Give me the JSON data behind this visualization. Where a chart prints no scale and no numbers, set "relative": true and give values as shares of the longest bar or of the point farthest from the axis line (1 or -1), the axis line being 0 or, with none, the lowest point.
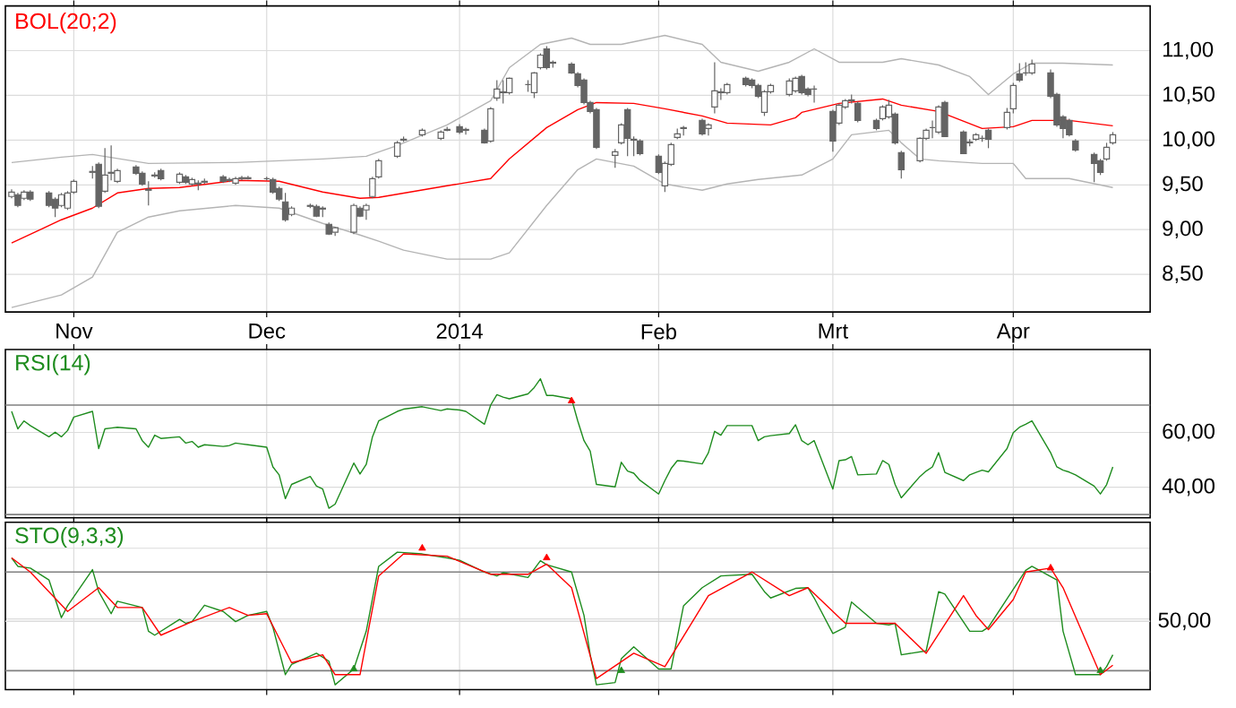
{
  "chart_data": [
    {
      "type": "candlestick",
      "color": "#646464",
      "x": [
        "2013-10-22",
        "2013-10-23",
        "2013-10-24",
        "2013-10-25",
        "2013-10-28",
        "2013-10-29",
        "2013-10-30",
        "2013-10-31",
        "2013-11-01",
        "2013-11-04",
        "2013-11-05",
        "2013-11-06",
        "2013-11-07",
        "2013-11-08",
        "2013-11-11",
        "2013-11-12",
        "2013-11-13",
        "2013-11-14",
        "2013-11-15",
        "2013-11-18",
        "2013-11-19",
        "2013-11-20",
        "2013-11-21",
        "2013-11-22",
        "2013-11-25",
        "2013-11-26",
        "2013-11-27",
        "2013-11-28",
        "2013-11-29",
        "2013-12-02",
        "2013-12-03",
        "2013-12-04",
        "2013-12-05",
        "2013-12-06",
        "2013-12-09",
        "2013-12-10",
        "2013-12-11",
        "2013-12-12",
        "2013-12-13",
        "2013-12-16",
        "2013-12-17",
        "2013-12-18",
        "2013-12-19",
        "2013-12-20",
        "2013-12-23",
        "2013-12-24",
        "2013-12-27",
        "2013-12-30",
        "2013-12-31",
        "2014-01-02",
        "2014-01-03",
        "2014-01-06",
        "2014-01-07",
        "2014-01-08",
        "2014-01-09",
        "2014-01-10",
        "2014-01-13",
        "2014-01-14",
        "2014-01-15",
        "2014-01-16",
        "2014-01-17",
        "2014-01-20",
        "2014-01-21",
        "2014-01-22",
        "2014-01-23",
        "2014-01-24",
        "2014-01-27",
        "2014-01-28",
        "2014-01-29",
        "2014-01-30",
        "2014-01-31",
        "2014-02-03",
        "2014-02-04",
        "2014-02-05",
        "2014-02-06",
        "2014-02-07",
        "2014-02-10",
        "2014-02-11",
        "2014-02-12",
        "2014-02-13",
        "2014-02-14",
        "2014-02-17",
        "2014-02-18",
        "2014-02-19",
        "2014-02-20",
        "2014-02-21",
        "2014-02-24",
        "2014-02-25",
        "2014-02-26",
        "2014-02-27",
        "2014-02-28",
        "2014-03-03",
        "2014-03-04",
        "2014-03-05",
        "2014-03-06",
        "2014-03-07",
        "2014-03-10",
        "2014-03-11",
        "2014-03-12",
        "2014-03-13",
        "2014-03-14",
        "2014-03-17",
        "2014-03-18",
        "2014-03-19",
        "2014-03-20",
        "2014-03-21",
        "2014-03-24",
        "2014-03-25",
        "2014-03-26",
        "2014-03-27",
        "2014-03-28",
        "2014-03-31",
        "2014-04-01",
        "2014-04-02",
        "2014-04-03",
        "2014-04-04",
        "2014-04-07",
        "2014-04-08",
        "2014-04-09",
        "2014-04-10",
        "2014-04-11",
        "2014-04-14",
        "2014-04-15",
        "2014-04-16",
        "2014-04-17"
      ],
      "ohlc": [
        [
          9.37,
          9.45,
          9.35,
          9.42
        ],
        [
          9.39,
          9.41,
          9.25,
          9.27
        ],
        [
          9.35,
          9.44,
          9.33,
          9.42
        ],
        [
          9.42,
          9.44,
          9.32,
          9.34
        ],
        [
          9.41,
          9.43,
          9.25,
          9.27
        ],
        [
          9.34,
          9.36,
          9.14,
          9.24
        ],
        [
          9.27,
          9.41,
          9.25,
          9.39
        ],
        [
          9.24,
          9.43,
          9.22,
          9.41
        ],
        [
          9.42,
          9.56,
          9.4,
          9.54
        ],
        [
          9.64,
          9.71,
          9.57,
          9.65
        ],
        [
          9.73,
          9.75,
          9.24,
          9.26
        ],
        [
          9.43,
          9.91,
          9.41,
          9.61
        ],
        [
          9.63,
          9.94,
          9.55,
          9.64
        ],
        [
          9.54,
          9.68,
          9.52,
          9.66
        ],
        [
          9.7,
          9.72,
          9.61,
          9.63
        ],
        [
          9.63,
          9.65,
          9.49,
          9.51
        ],
        [
          9.45,
          9.54,
          9.27,
          9.44
        ],
        [
          9.6,
          9.64,
          9.58,
          9.61
        ],
        [
          9.66,
          9.68,
          9.55,
          9.57
        ],
        [
          9.53,
          9.64,
          9.51,
          9.62
        ],
        [
          9.59,
          9.61,
          9.51,
          9.53
        ],
        [
          9.51,
          9.58,
          9.49,
          9.56
        ],
        [
          9.52,
          9.55,
          9.44,
          9.51
        ],
        [
          9.53,
          9.57,
          9.51,
          9.54
        ],
        [
          9.59,
          9.61,
          9.52,
          9.54
        ],
        [
          9.55,
          9.58,
          9.53,
          9.56
        ],
        [
          9.52,
          9.59,
          9.5,
          9.57
        ],
        [
          9.57,
          9.6,
          9.55,
          9.58
        ],
        [
          9.58,
          9.6,
          9.56,
          9.57
        ],
        [
          9.57,
          9.59,
          9.55,
          9.57
        ],
        [
          9.56,
          9.58,
          9.4,
          9.42
        ],
        [
          9.46,
          9.48,
          9.32,
          9.34
        ],
        [
          9.31,
          9.41,
          9.09,
          9.11
        ],
        [
          9.17,
          9.26,
          9.15,
          9.24
        ],
        [
          9.26,
          9.29,
          9.24,
          9.27
        ],
        [
          9.26,
          9.28,
          9.14,
          9.15
        ],
        [
          9.24,
          9.26,
          9.14,
          9.23
        ],
        [
          9.06,
          9.08,
          8.94,
          8.95
        ],
        [
          8.97,
          9.03,
          8.93,
          9.02
        ],
        [
          8.97,
          9.29,
          8.95,
          9.27
        ],
        [
          9.24,
          9.26,
          9.14,
          9.15
        ],
        [
          9.22,
          9.29,
          9.11,
          9.27
        ],
        [
          9.37,
          9.59,
          9.35,
          9.57
        ],
        [
          9.59,
          9.79,
          9.57,
          9.77
        ],
        [
          9.82,
          9.99,
          9.8,
          9.97
        ],
        [
          10.0,
          10.04,
          9.98,
          10.01
        ],
        [
          10.06,
          10.13,
          10.04,
          10.11
        ],
        [
          10.02,
          10.11,
          10.0,
          10.09
        ],
        [
          10.11,
          10.15,
          10.1,
          10.12
        ],
        [
          10.15,
          10.18,
          10.07,
          10.09
        ],
        [
          10.12,
          10.14,
          10.06,
          10.11
        ],
        [
          10.11,
          10.13,
          9.96,
          9.97
        ],
        [
          9.99,
          10.37,
          9.97,
          10.35
        ],
        [
          10.47,
          10.67,
          10.44,
          10.57
        ],
        [
          10.53,
          10.67,
          10.41,
          10.54
        ],
        [
          10.53,
          10.7,
          10.51,
          10.69
        ],
        [
          10.62,
          10.67,
          10.54,
          10.62
        ],
        [
          10.53,
          10.76,
          10.47,
          10.75
        ],
        [
          10.81,
          10.97,
          10.79,
          10.95
        ],
        [
          11.02,
          11.05,
          10.79,
          10.81
        ],
        [
          10.87,
          10.89,
          10.81,
          10.86
        ],
        [
          10.85,
          10.87,
          10.74,
          10.75
        ],
        [
          10.74,
          10.76,
          10.59,
          10.61
        ],
        [
          10.67,
          10.69,
          10.4,
          10.42
        ],
        [
          10.42,
          10.44,
          10.3,
          10.32
        ],
        [
          10.34,
          10.36,
          9.9,
          9.92
        ],
        [
          9.83,
          9.9,
          9.69,
          9.87
        ],
        [
          9.97,
          10.19,
          9.95,
          10.17
        ],
        [
          10.34,
          10.36,
          9.82,
          10.02
        ],
        [
          10.01,
          10.04,
          9.82,
          10.0
        ],
        [
          9.99,
          10.01,
          9.83,
          9.85
        ],
        [
          9.82,
          9.84,
          9.62,
          9.64
        ],
        [
          9.49,
          9.76,
          9.42,
          9.74
        ],
        [
          9.73,
          9.97,
          9.71,
          9.95
        ],
        [
          10.03,
          10.13,
          10.01,
          10.07
        ],
        [
          10.13,
          10.16,
          10.05,
          10.14
        ],
        [
          10.22,
          10.24,
          10.05,
          10.07
        ],
        [
          10.13,
          10.19,
          10.05,
          10.17
        ],
        [
          10.37,
          10.87,
          10.3,
          10.55
        ],
        [
          10.54,
          10.58,
          10.45,
          10.53
        ],
        [
          10.53,
          10.64,
          10.51,
          10.62
        ],
        [
          10.69,
          10.71,
          10.6,
          10.62
        ],
        [
          10.67,
          10.69,
          10.58,
          10.61
        ],
        [
          10.61,
          10.63,
          10.47,
          10.49
        ],
        [
          10.31,
          10.56,
          10.27,
          10.54
        ],
        [
          10.54,
          10.63,
          10.52,
          10.61
        ],
        [
          10.51,
          10.69,
          10.49,
          10.66
        ],
        [
          10.55,
          10.71,
          10.53,
          10.69
        ],
        [
          10.71,
          10.73,
          10.51,
          10.53
        ],
        [
          10.57,
          10.59,
          10.49,
          10.51
        ],
        [
          10.57,
          10.61,
          10.42,
          10.57
        ],
        [
          10.32,
          10.34,
          9.87,
          9.99
        ],
        [
          10.19,
          10.41,
          10.17,
          10.39
        ],
        [
          10.37,
          10.46,
          10.35,
          10.44
        ],
        [
          10.44,
          10.51,
          10.41,
          10.45
        ],
        [
          10.41,
          10.43,
          10.2,
          10.22
        ],
        [
          10.22,
          10.24,
          10.11,
          10.13
        ],
        [
          10.24,
          10.39,
          10.22,
          10.37
        ],
        [
          10.26,
          10.45,
          10.24,
          10.39
        ],
        [
          10.29,
          10.31,
          9.95,
          9.97
        ],
        [
          9.86,
          9.88,
          9.57,
          9.67
        ],
        [
          9.77,
          10.03,
          9.75,
          10.02
        ],
        [
          10.02,
          10.13,
          10.0,
          10.11
        ],
        [
          10.14,
          10.22,
          10.02,
          10.14
        ],
        [
          10.09,
          10.39,
          10.07,
          10.37
        ],
        [
          10.42,
          10.44,
          10.04,
          10.04
        ],
        [
          10.09,
          10.11,
          9.85,
          9.85
        ],
        [
          9.97,
          10.01,
          9.93,
          9.98
        ],
        [
          10.01,
          10.08,
          9.99,
          10.06
        ],
        [
          10.02,
          10.05,
          9.98,
          10.02
        ],
        [
          10.11,
          10.13,
          9.91,
          10.01
        ],
        [
          10.14,
          10.36,
          10.12,
          10.31
        ],
        [
          10.35,
          10.64,
          10.3,
          10.61
        ],
        [
          10.74,
          10.86,
          10.65,
          10.67
        ],
        [
          10.75,
          10.87,
          10.72,
          10.75
        ],
        [
          10.75,
          10.9,
          10.73,
          10.85
        ],
        [
          10.75,
          10.79,
          10.47,
          10.49
        ],
        [
          10.51,
          10.53,
          10.15,
          10.17
        ],
        [
          10.26,
          10.28,
          10.02,
          10.13
        ],
        [
          10.22,
          10.24,
          10.04,
          10.06
        ],
        [
          9.99,
          10.01,
          9.87,
          9.89
        ],
        [
          9.84,
          9.86,
          9.53,
          9.74
        ],
        [
          9.77,
          9.79,
          9.61,
          9.64
        ],
        [
          9.79,
          9.97,
          9.77,
          9.92
        ],
        [
          9.97,
          10.09,
          9.95,
          10.06
        ]
      ],
      "series": [
        {
          "type": "line",
          "color": "#b4b4b4",
          "x": [
            "2013-10-22",
            "2013-10-30",
            "2013-11-04",
            "2013-11-13",
            "2013-11-27",
            "2013-12-11",
            "2013-12-18",
            "2013-12-23",
            "2013-12-31",
            "2014-01-07",
            "2014-01-10",
            "2014-01-15",
            "2014-01-20",
            "2014-01-23",
            "2014-01-28",
            "2014-02-04",
            "2014-02-10",
            "2014-02-13",
            "2014-02-19",
            "2014-02-24",
            "2014-02-28",
            "2014-03-04",
            "2014-03-11",
            "2014-03-14",
            "2014-03-20",
            "2014-03-25",
            "2014-03-28",
            "2014-04-01",
            "2014-04-04",
            "2014-04-09",
            "2014-04-17"
          ],
          "values": [
            9.75,
            9.81,
            9.84,
            9.74,
            9.75,
            9.79,
            9.82,
            9.94,
            10.17,
            10.44,
            10.81,
            11.07,
            11.14,
            11.07,
            11.07,
            11.17,
            11.07,
            10.87,
            10.77,
            10.87,
            11.02,
            10.87,
            10.87,
            10.91,
            10.84,
            10.71,
            10.51,
            10.74,
            10.86,
            10.86,
            10.84
          ]
        },
        {
          "type": "line",
          "name": "BOL(20;2)",
          "color": "#ff0000",
          "x": [
            "2013-10-22",
            "2013-10-30",
            "2013-11-04",
            "2013-11-08",
            "2013-11-13",
            "2013-11-18",
            "2013-11-27",
            "2013-12-04",
            "2013-12-11",
            "2013-12-17",
            "2013-12-20",
            "2013-12-31",
            "2014-01-07",
            "2014-01-10",
            "2014-01-16",
            "2014-01-21",
            "2014-01-24",
            "2014-01-30",
            "2014-02-04",
            "2014-02-10",
            "2014-02-14",
            "2014-02-21",
            "2014-02-25",
            "2014-02-26",
            "2014-03-04",
            "2014-03-11",
            "2014-03-14",
            "2014-03-20",
            "2014-03-27",
            "2014-04-01",
            "2014-04-04",
            "2014-04-10",
            "2014-04-17"
          ],
          "values": [
            8.85,
            9.11,
            9.24,
            9.41,
            9.46,
            9.47,
            9.55,
            9.54,
            9.42,
            9.35,
            9.36,
            9.49,
            9.57,
            9.79,
            10.14,
            10.34,
            10.42,
            10.41,
            10.35,
            10.27,
            10.19,
            10.17,
            10.25,
            10.31,
            10.41,
            10.46,
            10.39,
            10.32,
            10.13,
            10.15,
            10.22,
            10.22,
            10.16
          ]
        },
        {
          "type": "line",
          "color": "#b4b4b4",
          "x": [
            "2013-10-22",
            "2013-10-30",
            "2013-11-04",
            "2013-11-08",
            "2013-11-13",
            "2013-11-18",
            "2013-11-27",
            "2013-12-04",
            "2013-12-11",
            "2013-12-17",
            "2013-12-20",
            "2013-12-24",
            "2013-12-31",
            "2014-01-07",
            "2014-01-10",
            "2014-01-16",
            "2014-01-21",
            "2014-01-24",
            "2014-01-30",
            "2014-02-04",
            "2014-02-10",
            "2014-02-14",
            "2014-02-19",
            "2014-02-26",
            "2014-03-03",
            "2014-03-06",
            "2014-03-12",
            "2014-03-14",
            "2014-03-17",
            "2014-03-20",
            "2014-03-27",
            "2014-04-01",
            "2014-04-03",
            "2014-04-10",
            "2014-04-17"
          ],
          "values": [
            8.13,
            8.27,
            8.47,
            8.97,
            9.14,
            9.21,
            9.27,
            9.24,
            9.07,
            8.94,
            8.87,
            8.77,
            8.67,
            8.67,
            8.74,
            9.27,
            9.67,
            9.79,
            9.71,
            9.51,
            9.44,
            9.51,
            9.56,
            9.61,
            9.79,
            10.06,
            10.11,
            9.97,
            9.79,
            9.77,
            9.74,
            9.74,
            9.57,
            9.57,
            9.47
          ]
        }
      ],
      "xlim": [
        "2013-10-21",
        "2014-04-23"
      ],
      "xticks": [
        {
          "value": "2013-11-01",
          "label": "Nov"
        },
        {
          "value": "2013-12-02",
          "label": "Dec"
        },
        {
          "value": "2014-01-02",
          "label": "2014"
        },
        {
          "value": "2014-02-03",
          "label": "Feb"
        },
        {
          "value": "2014-03-03",
          "label": "Mrt"
        },
        {
          "value": "2014-04-01",
          "label": "Apr"
        }
      ],
      "ylim": [
        8.08,
        11.5
      ],
      "yticks": [
        {
          "value": 8.5,
          "label": "8,50"
        },
        {
          "value": 9,
          "label": "9,00"
        },
        {
          "value": 9.5,
          "label": "9,50"
        },
        {
          "value": 10,
          "label": "10,00"
        },
        {
          "value": 10.5,
          "label": "10,50"
        },
        {
          "value": 11,
          "label": "11,00"
        }
      ],
      "grid": true,
      "legend": "top left"
    },
    {
      "type": "line",
      "x": [
        "2013-10-22",
        "2013-10-23",
        "2013-10-24",
        "2013-10-25",
        "2013-10-28",
        "2013-10-29",
        "2013-10-30",
        "2013-10-31",
        "2013-11-01",
        "2013-11-04",
        "2013-11-05",
        "2013-11-06",
        "2013-11-07",
        "2013-11-08",
        "2013-11-11",
        "2013-11-12",
        "2013-11-13",
        "2013-11-14",
        "2013-11-15",
        "2013-11-18",
        "2013-11-19",
        "2013-11-20",
        "2013-11-21",
        "2013-11-22",
        "2013-11-25",
        "2013-11-26",
        "2013-11-27",
        "2013-11-28",
        "2013-11-29",
        "2013-12-02",
        "2013-12-03",
        "2013-12-04",
        "2013-12-05",
        "2013-12-06",
        "2013-12-09",
        "2013-12-10",
        "2013-12-11",
        "2013-12-12",
        "2013-12-13",
        "2013-12-16",
        "2013-12-17",
        "2013-12-18",
        "2013-12-19",
        "2013-12-20",
        "2013-12-23",
        "2013-12-24",
        "2013-12-27",
        "2013-12-30",
        "2013-12-31",
        "2014-01-02",
        "2014-01-03",
        "2014-01-06",
        "2014-01-07",
        "2014-01-08",
        "2014-01-09",
        "2014-01-10",
        "2014-01-13",
        "2014-01-14",
        "2014-01-15",
        "2014-01-16",
        "2014-01-17",
        "2014-01-20",
        "2014-01-21",
        "2014-01-22",
        "2014-01-23",
        "2014-01-24",
        "2014-01-27",
        "2014-01-28",
        "2014-01-29",
        "2014-01-30",
        "2014-01-31",
        "2014-02-03",
        "2014-02-04",
        "2014-02-05",
        "2014-02-06",
        "2014-02-07",
        "2014-02-10",
        "2014-02-11",
        "2014-02-12",
        "2014-02-13",
        "2014-02-14",
        "2014-02-17",
        "2014-02-18",
        "2014-02-19",
        "2014-02-20",
        "2014-02-21",
        "2014-02-24",
        "2014-02-25",
        "2014-02-26",
        "2014-02-27",
        "2014-02-28",
        "2014-03-03",
        "2014-03-04",
        "2014-03-05",
        "2014-03-06",
        "2014-03-07",
        "2014-03-10",
        "2014-03-11",
        "2014-03-12",
        "2014-03-13",
        "2014-03-14",
        "2014-03-17",
        "2014-03-18",
        "2014-03-19",
        "2014-03-20",
        "2014-03-21",
        "2014-03-24",
        "2014-03-25",
        "2014-03-26",
        "2014-03-27",
        "2014-03-28",
        "2014-03-31",
        "2014-04-01",
        "2014-04-02",
        "2014-04-03",
        "2014-04-04",
        "2014-04-07",
        "2014-04-08",
        "2014-04-09",
        "2014-04-10",
        "2014-04-11",
        "2014-04-14",
        "2014-04-15",
        "2014-04-16",
        "2014-04-17"
      ],
      "series": [
        {
          "name": "RSI(14)",
          "color": "#1e8c1e",
          "values": [
            67.7,
            61.3,
            64.2,
            62.5,
            58.4,
            60.1,
            58.4,
            60.7,
            65.6,
            67.7,
            54.1,
            61.3,
            61.6,
            61.9,
            61.3,
            57.0,
            54.6,
            59.0,
            57.8,
            58.4,
            56.1,
            56.7,
            54.6,
            55.5,
            54.9,
            55.2,
            56.1,
            55.8,
            55.5,
            54.6,
            47.4,
            44.5,
            35.8,
            41.0,
            43.9,
            40.4,
            39.3,
            32.3,
            33.8,
            48.8,
            44.8,
            48.3,
            58.4,
            64.2,
            67.7,
            68.5,
            69.4,
            68.0,
            68.6,
            68.2,
            67.7,
            63.0,
            70.0,
            73.8,
            72.9,
            72.3,
            74.1,
            76.4,
            79.6,
            73.5,
            73.5,
            72.3,
            64.2,
            57.0,
            53.2,
            41.0,
            40.1,
            49.1,
            45.9,
            45.1,
            42.5,
            37.5,
            42.4,
            46.8,
            49.7,
            49.5,
            48.5,
            52.6,
            60.4,
            59.0,
            62.5,
            62.5,
            62.5,
            57.0,
            58.4,
            58.8,
            59.6,
            62.8,
            57.0,
            55.5,
            57.0,
            39.3,
            49.7,
            50.0,
            51.2,
            44.5,
            44.8,
            49.7,
            48.3,
            41.0,
            36.1,
            43.9,
            45.9,
            47.4,
            52.6,
            45.4,
            42.4,
            44.5,
            45.4,
            46.2,
            45.6,
            54.1,
            59.9,
            61.9,
            63.0,
            64.2,
            52.6,
            47.4,
            46.2,
            45.5,
            44.5,
            40.4,
            37.5,
            40.9,
            47.4
          ]
        },
        {
          "type": "scatter",
          "color": "#ff0000",
          "marker": "triangle",
          "x": [
            "2014-01-20"
          ],
          "values": [
            71.5
          ]
        }
      ],
      "xlim": [
        "2013-10-21",
        "2014-04-23"
      ],
      "xticks": [
        {
          "value": "2013-11-01",
          "label": null
        },
        {
          "value": "2013-12-02",
          "label": null
        },
        {
          "value": "2014-01-02",
          "label": null
        },
        {
          "value": "2014-02-03",
          "label": null
        },
        {
          "value": "2014-03-03",
          "label": null
        },
        {
          "value": "2014-04-01",
          "label": null
        }
      ],
      "ylim": [
        28.8,
        90.3
      ],
      "yticks": [
        {
          "value": 40,
          "label": "40,00"
        },
        {
          "value": 60,
          "label": "60,00"
        }
      ],
      "ref_lines": [
        {
          "axis": "y",
          "value": 70,
          "color": "#808080"
        },
        {
          "axis": "y",
          "value": 30,
          "color": "#808080"
        }
      ],
      "tick_labels": "y",
      "grid": true,
      "legend": "top left"
    },
    {
      "type": "line",
      "series": [
        {
          "name": "STO(9,3,3)",
          "color": "#1e8c1e",
          "x": [
            "2013-10-22",
            "2013-10-23",
            "2013-10-25",
            "2013-10-28",
            "2013-10-30",
            "2013-10-31",
            "2013-11-04",
            "2013-11-05",
            "2013-11-07",
            "2013-11-08",
            "2013-11-12",
            "2013-11-13",
            "2013-11-14",
            "2013-11-18",
            "2013-11-19",
            "2013-11-20",
            "2013-11-22",
            "2013-11-25",
            "2013-11-27",
            "2013-11-29",
            "2013-12-02",
            "2013-12-03",
            "2013-12-05",
            "2013-12-06",
            "2013-12-10",
            "2013-12-12",
            "2013-12-13",
            "2013-12-16",
            "2013-12-18",
            "2013-12-20",
            "2013-12-23",
            "2013-12-27",
            "2013-12-31",
            "2014-01-02",
            "2014-01-06",
            "2014-01-08",
            "2014-01-09",
            "2014-01-13",
            "2014-01-15",
            "2014-01-16",
            "2014-01-20",
            "2014-01-22",
            "2014-01-23",
            "2014-01-24",
            "2014-01-27",
            "2014-01-28",
            "2014-01-30",
            "2014-02-03",
            "2014-02-05",
            "2014-02-07",
            "2014-02-10",
            "2014-02-13",
            "2014-02-18",
            "2014-02-20",
            "2014-02-21",
            "2014-02-25",
            "2014-02-27",
            "2014-02-28",
            "2014-03-03",
            "2014-03-05",
            "2014-03-06",
            "2014-03-10",
            "2014-03-12",
            "2014-03-13",
            "2014-03-14",
            "2014-03-18",
            "2014-03-20",
            "2014-03-21",
            "2014-03-25",
            "2014-03-27",
            "2014-03-28",
            "2014-04-03",
            "2014-04-04",
            "2014-04-08",
            "2014-04-09",
            "2014-04-11",
            "2014-04-15",
            "2014-04-16",
            "2014-04-17"
          ],
          "values": [
            0.932,
            0.872,
            0.86,
            0.776,
            0.509,
            0.593,
            0.849,
            0.693,
            0.537,
            0.625,
            0.581,
            0.413,
            0.385,
            0.497,
            0.469,
            0.481,
            0.597,
            0.553,
            0.481,
            0.525,
            0.553,
            0.441,
            0.106,
            0.178,
            0.257,
            0.201,
            0.034,
            0.146,
            0.413,
            0.872,
            0.972,
            0.96,
            0.932,
            0.915,
            0.832,
            0.804,
            0.827,
            0.793,
            0.912,
            0.884,
            0.832,
            0.525,
            0.246,
            0.034,
            0.05,
            0.218,
            0.302,
            0.146,
            0.146,
            0.593,
            0.721,
            0.804,
            0.816,
            0.693,
            0.648,
            0.716,
            0.721,
            0.648,
            0.397,
            0.441,
            0.62,
            0.469,
            0.458,
            0.469,
            0.246,
            0.274,
            0.693,
            0.676,
            0.413,
            0.413,
            0.441,
            0.844,
            0.872,
            0.776,
            0.413,
            0.106,
            0.106,
            0.162,
            0.246
          ]
        },
        {
          "color": "#ff0000",
          "x": [
            "2013-10-22",
            "2013-10-25",
            "2013-10-31",
            "2013-11-05",
            "2013-11-08",
            "2013-11-12",
            "2013-11-15",
            "2013-11-20",
            "2013-11-26",
            "2013-11-29",
            "2013-12-02",
            "2013-12-06",
            "2013-12-11",
            "2013-12-13",
            "2013-12-17",
            "2013-12-20",
            "2013-12-24",
            "2013-12-31",
            "2014-01-07",
            "2014-01-13",
            "2014-01-16",
            "2014-01-20",
            "2014-01-24",
            "2014-01-30",
            "2014-02-04",
            "2014-02-11",
            "2014-02-18",
            "2014-02-24",
            "2014-02-27",
            "2014-03-05",
            "2014-03-13",
            "2014-03-18",
            "2014-03-24",
            "2014-03-26",
            "2014-03-28",
            "2014-04-01",
            "2014-04-03",
            "2014-04-07",
            "2014-04-09",
            "2014-04-15",
            "2014-04-17"
          ],
          "values": [
            0.932,
            0.832,
            0.553,
            0.721,
            0.581,
            0.581,
            0.385,
            0.481,
            0.581,
            0.525,
            0.537,
            0.19,
            0.246,
            0.106,
            0.106,
            0.804,
            0.96,
            0.944,
            0.816,
            0.816,
            0.888,
            0.721,
            0.078,
            0.257,
            0.162,
            0.665,
            0.832,
            0.665,
            0.721,
            0.469,
            0.469,
            0.257,
            0.665,
            0.525,
            0.425,
            0.637,
            0.832,
            0.86,
            0.721,
            0.106,
            0.173
          ]
        },
        {
          "type": "scatter",
          "color": "#ff0000",
          "marker": "triangle",
          "x": [
            "2013-12-27",
            "2014-01-16",
            "2014-04-07"
          ],
          "values": [
            1.0,
            0.932,
            0.86
          ]
        },
        {
          "type": "scatter",
          "color": "#1e8c1e",
          "marker": "triangle",
          "x": [
            "2013-12-16",
            "2014-01-28",
            "2014-04-15"
          ],
          "values": [
            0.146,
            0.134,
            0.134
          ]
        }
      ],
      "xlim": [
        "2013-10-21",
        "2014-04-23"
      ],
      "xticks": [
        {
          "value": "2013-11-01",
          "label": null
        },
        {
          "value": "2013-12-02",
          "label": null
        },
        {
          "value": "2014-01-02",
          "label": null
        },
        {
          "value": "2014-02-03",
          "label": null
        },
        {
          "value": "2014-03-03",
          "label": null
        },
        {
          "value": "2014-04-01",
          "label": null
        }
      ],
      "relative": true,
      "annotations": [
        "50,00"
      ],
      "ref_lines": [
        {
          "axis": "y",
          "value": 0.832,
          "color": "#808080"
        },
        {
          "axis": "y",
          "value": 0.483,
          "color": "#dcdcdc"
        },
        {
          "axis": "y",
          "value": 0.134,
          "color": "#808080"
        }
      ],
      "tick_labels": "y",
      "grid": true,
      "legend": "top left"
    }
  ]
}
